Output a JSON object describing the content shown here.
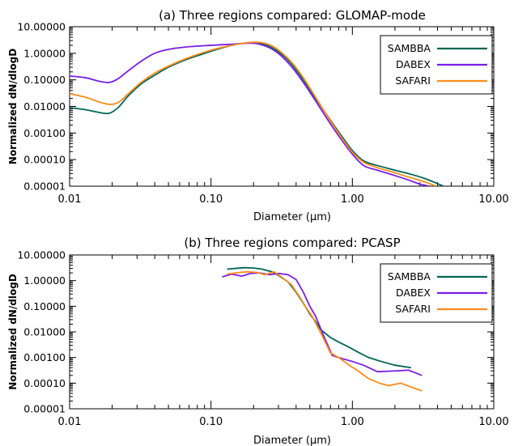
{
  "colors": {
    "SAMBBA": "#006655",
    "DABEX": "#7a1ee6",
    "SAFARI": "#ff8c1a"
  },
  "chart_data": [
    {
      "type": "line",
      "title": "(a) Three regions compared: GLOMAP-mode",
      "xlabel": "Diameter (μm)",
      "ylabel": "Normalized dN/dlogD",
      "xscale": "log",
      "yscale": "log",
      "xlim": [
        0.01,
        10
      ],
      "ylim": [
        1e-05,
        10
      ],
      "xticks": [
        {
          "value": 0.01,
          "label": "0.01"
        },
        {
          "value": 0.1,
          "label": "0.10"
        },
        {
          "value": 1,
          "label": "1.00"
        },
        {
          "value": 10,
          "label": "10.00"
        }
      ],
      "yticks": [
        {
          "value": 10,
          "label": "10.00000"
        },
        {
          "value": 1,
          "label": "1.00000"
        },
        {
          "value": 0.1,
          "label": "0.10000"
        },
        {
          "value": 0.01,
          "label": "0.01000"
        },
        {
          "value": 0.001,
          "label": "0.00100"
        },
        {
          "value": 0.0001,
          "label": "0.00010"
        },
        {
          "value": 1e-05,
          "label": "0.00001"
        }
      ],
      "legend": "top-right",
      "series": [
        {
          "name": "SAMBBA",
          "x": [
            0.01,
            0.013,
            0.016,
            0.019,
            0.022,
            0.026,
            0.032,
            0.04,
            0.05,
            0.065,
            0.085,
            0.11,
            0.14,
            0.17,
            0.195,
            0.22,
            0.26,
            0.31,
            0.37,
            0.45,
            0.55,
            0.7,
            0.85,
            1.0,
            1.2,
            1.5,
            2.0,
            2.6,
            3.2,
            3.8,
            4.4
          ],
          "y": [
            0.009,
            0.0075,
            0.006,
            0.0055,
            0.009,
            0.025,
            0.07,
            0.15,
            0.3,
            0.55,
            0.9,
            1.4,
            2.0,
            2.4,
            2.5,
            2.4,
            1.8,
            1.0,
            0.4,
            0.1,
            0.02,
            0.003,
            0.0007,
            0.00022,
            9e-05,
            6e-05,
            4e-05,
            2.8e-05,
            2e-05,
            1.4e-05,
            1e-05
          ]
        },
        {
          "name": "DABEX",
          "x": [
            0.01,
            0.013,
            0.016,
            0.019,
            0.022,
            0.026,
            0.032,
            0.04,
            0.05,
            0.065,
            0.085,
            0.11,
            0.14,
            0.17,
            0.195,
            0.22,
            0.26,
            0.31,
            0.37,
            0.45,
            0.55,
            0.7,
            0.85,
            1.0,
            1.2,
            1.5,
            2.0,
            2.5,
            3.0,
            3.5
          ],
          "y": [
            0.14,
            0.12,
            0.09,
            0.08,
            0.11,
            0.22,
            0.5,
            1.0,
            1.4,
            1.7,
            1.9,
            2.05,
            2.2,
            2.35,
            2.4,
            2.2,
            1.6,
            0.85,
            0.32,
            0.08,
            0.016,
            0.0022,
            0.0005,
            0.00016,
            6e-05,
            4e-05,
            2.5e-05,
            1.7e-05,
            1.2e-05,
            1e-05
          ]
        },
        {
          "name": "SAFARI",
          "x": [
            0.01,
            0.013,
            0.016,
            0.019,
            0.022,
            0.026,
            0.032,
            0.04,
            0.05,
            0.065,
            0.085,
            0.11,
            0.14,
            0.17,
            0.2,
            0.23,
            0.27,
            0.32,
            0.38,
            0.45,
            0.55,
            0.7,
            0.85,
            1.0,
            1.2,
            1.5,
            2.0,
            2.5,
            3.2,
            3.9
          ],
          "y": [
            0.03,
            0.022,
            0.015,
            0.012,
            0.014,
            0.03,
            0.08,
            0.18,
            0.33,
            0.6,
            1.0,
            1.5,
            2.0,
            2.4,
            2.6,
            2.5,
            1.9,
            1.0,
            0.4,
            0.12,
            0.022,
            0.0028,
            0.0006,
            0.00019,
            8e-05,
            5e-05,
            3.2e-05,
            2.2e-05,
            1.5e-05,
            1e-05
          ]
        }
      ]
    },
    {
      "type": "line",
      "title": "(b) Three regions compared: PCASP",
      "xlabel": "Diameter (μm)",
      "ylabel": "Normalized dN/dlogD",
      "xscale": "log",
      "yscale": "log",
      "xlim": [
        0.01,
        10
      ],
      "ylim": [
        1e-05,
        10
      ],
      "xticks": [
        {
          "value": 0.01,
          "label": "0.01"
        },
        {
          "value": 0.1,
          "label": "0.10"
        },
        {
          "value": 1,
          "label": "1.00"
        },
        {
          "value": 10,
          "label": "10.00"
        }
      ],
      "yticks": [
        {
          "value": 10,
          "label": "10.00000"
        },
        {
          "value": 1,
          "label": "1.00000"
        },
        {
          "value": 0.1,
          "label": "0.10000"
        },
        {
          "value": 0.01,
          "label": "0.01000"
        },
        {
          "value": 0.001,
          "label": "0.00100"
        },
        {
          "value": 0.0001,
          "label": "0.00010"
        },
        {
          "value": 1e-05,
          "label": "0.00001"
        }
      ],
      "legend": "top-right",
      "series": [
        {
          "name": "SAMBBA",
          "x": [
            0.13,
            0.15,
            0.17,
            0.2,
            0.23,
            0.27,
            0.3,
            0.35,
            0.4,
            0.45,
            0.5,
            0.55,
            0.6,
            0.7,
            0.8,
            0.95,
            1.1,
            1.3,
            1.6,
            2.0,
            2.6
          ],
          "y": [
            2.8,
            3.0,
            3.2,
            3.1,
            2.8,
            2.2,
            1.6,
            0.9,
            0.35,
            0.13,
            0.05,
            0.025,
            0.012,
            0.006,
            0.004,
            0.0025,
            0.0016,
            0.001,
            0.0007,
            0.0005,
            0.0004
          ]
        },
        {
          "name": "DABEX",
          "x": [
            0.12,
            0.14,
            0.165,
            0.19,
            0.22,
            0.26,
            0.3,
            0.35,
            0.4,
            0.45,
            0.5,
            0.55,
            0.62,
            0.72,
            0.85,
            1.0,
            1.2,
            1.5,
            2.0,
            2.5,
            3.1
          ],
          "y": [
            1.4,
            1.8,
            1.5,
            1.9,
            2.0,
            1.7,
            1.9,
            1.7,
            1.1,
            0.35,
            0.1,
            0.04,
            0.008,
            0.0012,
            0.0009,
            0.0007,
            0.0005,
            0.00028,
            0.0003,
            0.00032,
            0.0002
          ]
        },
        {
          "name": "SAFARI",
          "x": [
            0.13,
            0.15,
            0.18,
            0.21,
            0.24,
            0.28,
            0.32,
            0.37,
            0.42,
            0.47,
            0.52,
            0.57,
            0.62,
            0.7,
            0.8,
            0.95,
            1.1,
            1.3,
            1.55,
            1.8,
            2.2,
            2.6,
            3.1
          ],
          "y": [
            1.8,
            2.0,
            2.2,
            2.1,
            1.7,
            2.2,
            1.3,
            0.7,
            0.25,
            0.09,
            0.04,
            0.015,
            0.006,
            0.0015,
            0.001,
            0.0005,
            0.0003,
            0.00015,
            0.0001,
            8e-05,
            0.0001,
            7e-05,
            5e-05
          ]
        }
      ]
    }
  ]
}
